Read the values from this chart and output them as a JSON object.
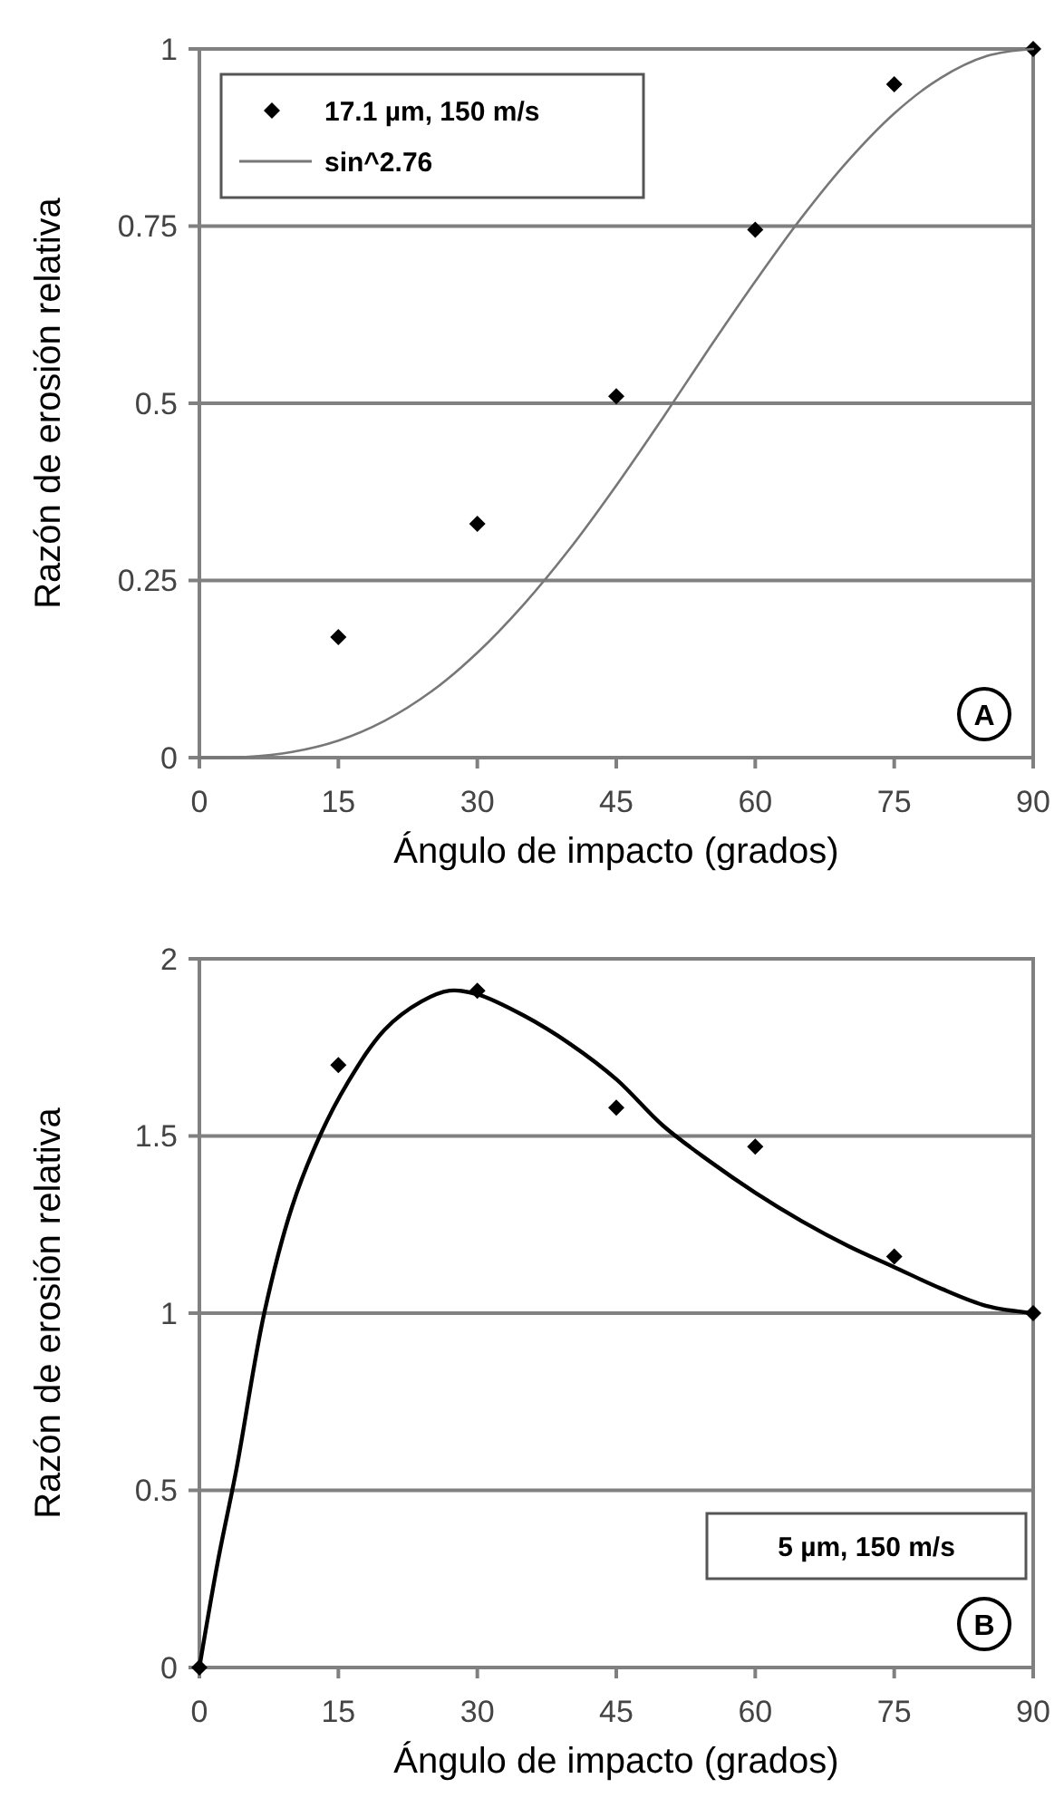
{
  "chart_data": [
    {
      "type": "scatter",
      "xlabel": "Ángulo de impacto (grados)",
      "ylabel": "Razón de erosión relativa",
      "xlim": [
        0,
        90
      ],
      "xticks": [
        0,
        15,
        30,
        45,
        60,
        75,
        90
      ],
      "ylim": [
        0,
        1
      ],
      "yticks": [
        0,
        {
          "value": 0.25,
          "label": "0.25"
        },
        {
          "value": 0.5,
          "label": "0.5"
        },
        {
          "value": 0.75,
          "label": "0.75"
        },
        1
      ],
      "grid": "y",
      "legend": "top left",
      "annotations": [
        "A"
      ],
      "series": [
        {
          "name": "17.1 µm, 150 m/s",
          "marker": "diamond",
          "color": "#000000",
          "x": [
            15,
            30,
            45,
            60,
            75,
            90
          ],
          "values": [
            0.17,
            0.33,
            0.51,
            0.745,
            0.95,
            1.0
          ]
        },
        {
          "name": "sin^2.76",
          "type": "line",
          "marker": "none",
          "color": "#777777",
          "x": [
            0,
            5,
            10,
            15,
            20,
            25,
            30,
            35,
            40,
            45,
            50,
            55,
            60,
            65,
            70,
            75,
            80,
            85,
            90
          ],
          "values": [
            0,
            0.001,
            0.008,
            0.024,
            0.052,
            0.093,
            0.148,
            0.216,
            0.295,
            0.384,
            0.479,
            0.577,
            0.672,
            0.762,
            0.842,
            0.909,
            0.959,
            0.99,
            1.0
          ]
        }
      ]
    },
    {
      "type": "scatter",
      "xlabel": "Ángulo de impacto (grados)",
      "ylabel": "Razón de erosión relativa",
      "xlim": [
        0,
        90
      ],
      "xticks": [
        0,
        15,
        30,
        45,
        60,
        75,
        90
      ],
      "ylim": [
        0,
        2
      ],
      "yticks": [
        0,
        {
          "value": 0.5,
          "label": "0.5"
        },
        1,
        {
          "value": 1.5,
          "label": "1.5"
        },
        2
      ],
      "grid": "y",
      "annotations": [
        "5 µm, 150 m/s",
        "B"
      ],
      "series": [
        {
          "marker": "diamond",
          "color": "#000000",
          "x": [
            0,
            15,
            30,
            45,
            60,
            75,
            90
          ],
          "values": [
            0,
            1.7,
            1.91,
            1.58,
            1.47,
            1.16,
            1.0
          ]
        },
        {
          "type": "line",
          "marker": "none",
          "color": "#000000",
          "x": [
            0,
            2,
            4,
            7,
            10,
            13,
            16,
            20,
            24,
            27,
            30,
            35,
            40,
            45,
            50,
            55,
            60,
            65,
            70,
            75,
            80,
            85,
            90
          ],
          "values": [
            0,
            0.3,
            0.56,
            1.0,
            1.3,
            1.5,
            1.65,
            1.8,
            1.88,
            1.91,
            1.9,
            1.84,
            1.76,
            1.66,
            1.53,
            1.43,
            1.34,
            1.26,
            1.19,
            1.13,
            1.07,
            1.02,
            1.0
          ]
        }
      ]
    }
  ]
}
